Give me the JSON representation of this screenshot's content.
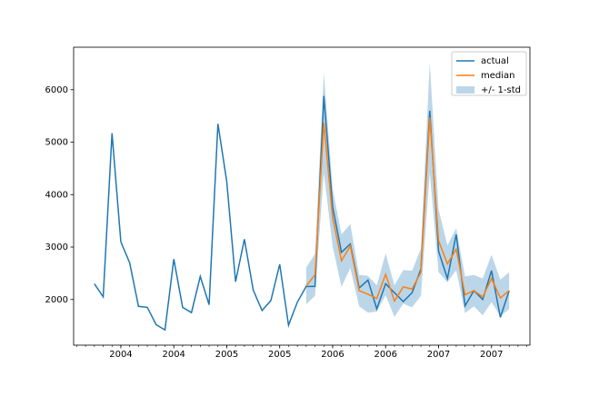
{
  "chart_data": {
    "type": "line",
    "x": [
      0,
      1,
      2,
      3,
      4,
      5,
      6,
      7,
      8,
      9,
      10,
      11,
      12,
      13,
      14,
      15,
      16,
      17,
      18,
      19,
      20,
      21,
      22,
      23,
      24,
      25,
      26,
      27,
      28,
      29,
      30,
      31,
      32,
      33,
      34,
      35,
      36,
      37,
      38,
      39,
      40,
      41,
      42,
      43,
      44,
      45,
      46,
      47
    ],
    "series": [
      {
        "name": "actual",
        "color": "#1f77b4",
        "values": [
          2300,
          2050,
          5170,
          3100,
          2700,
          1870,
          1850,
          1520,
          1420,
          2770,
          1850,
          1750,
          2440,
          1900,
          5350,
          4250,
          2340,
          3150,
          2180,
          1790,
          1980,
          2670,
          1510,
          1950,
          2250,
          2250,
          5880,
          3760,
          2900,
          3060,
          2220,
          2370,
          1820,
          2300,
          2130,
          1960,
          2130,
          2580,
          5600,
          2920,
          2400,
          3240,
          1880,
          2170,
          2000,
          2550,
          1660,
          2170
        ]
      },
      {
        "name": "median",
        "color": "#ff7f0e",
        "values": [
          null,
          null,
          null,
          null,
          null,
          null,
          null,
          null,
          null,
          null,
          null,
          null,
          null,
          null,
          null,
          null,
          null,
          null,
          null,
          null,
          null,
          null,
          null,
          null,
          2260,
          2470,
          5370,
          3560,
          2740,
          3020,
          2170,
          2100,
          2020,
          2480,
          1970,
          2240,
          2200,
          2520,
          5470,
          3120,
          2680,
          2960,
          2090,
          2170,
          2050,
          2400,
          2030,
          2170
        ]
      },
      {
        "name": "+/- 1-std",
        "color": "#1f77b4",
        "values": [
          null,
          null,
          null,
          null,
          null,
          null,
          null,
          null,
          null,
          null,
          null,
          null,
          null,
          null,
          null,
          null,
          null,
          null,
          null,
          null,
          null,
          null,
          null,
          null,
          350,
          400,
          950,
          550,
          500,
          420,
          300,
          350,
          250,
          400,
          300,
          320,
          350,
          450,
          1050,
          600,
          350,
          400,
          350,
          300,
          350,
          450,
          350,
          350
        ]
      }
    ],
    "xlim": [
      -2.35,
      49.35
    ],
    "xticks": [
      {
        "value": 3,
        "label": "2004"
      },
      {
        "value": 9,
        "label": "2004"
      },
      {
        "value": 15,
        "label": "2005"
      },
      {
        "value": 21,
        "label": "2005"
      },
      {
        "value": 27,
        "label": "2006"
      },
      {
        "value": 33,
        "label": "2006"
      },
      {
        "value": 39,
        "label": "2007"
      },
      {
        "value": 45,
        "label": "2007"
      }
    ],
    "ylim": [
      1130,
      6810
    ],
    "yticks": [
      2000,
      3000,
      4000,
      5000,
      6000
    ],
    "legend": "upper right"
  }
}
